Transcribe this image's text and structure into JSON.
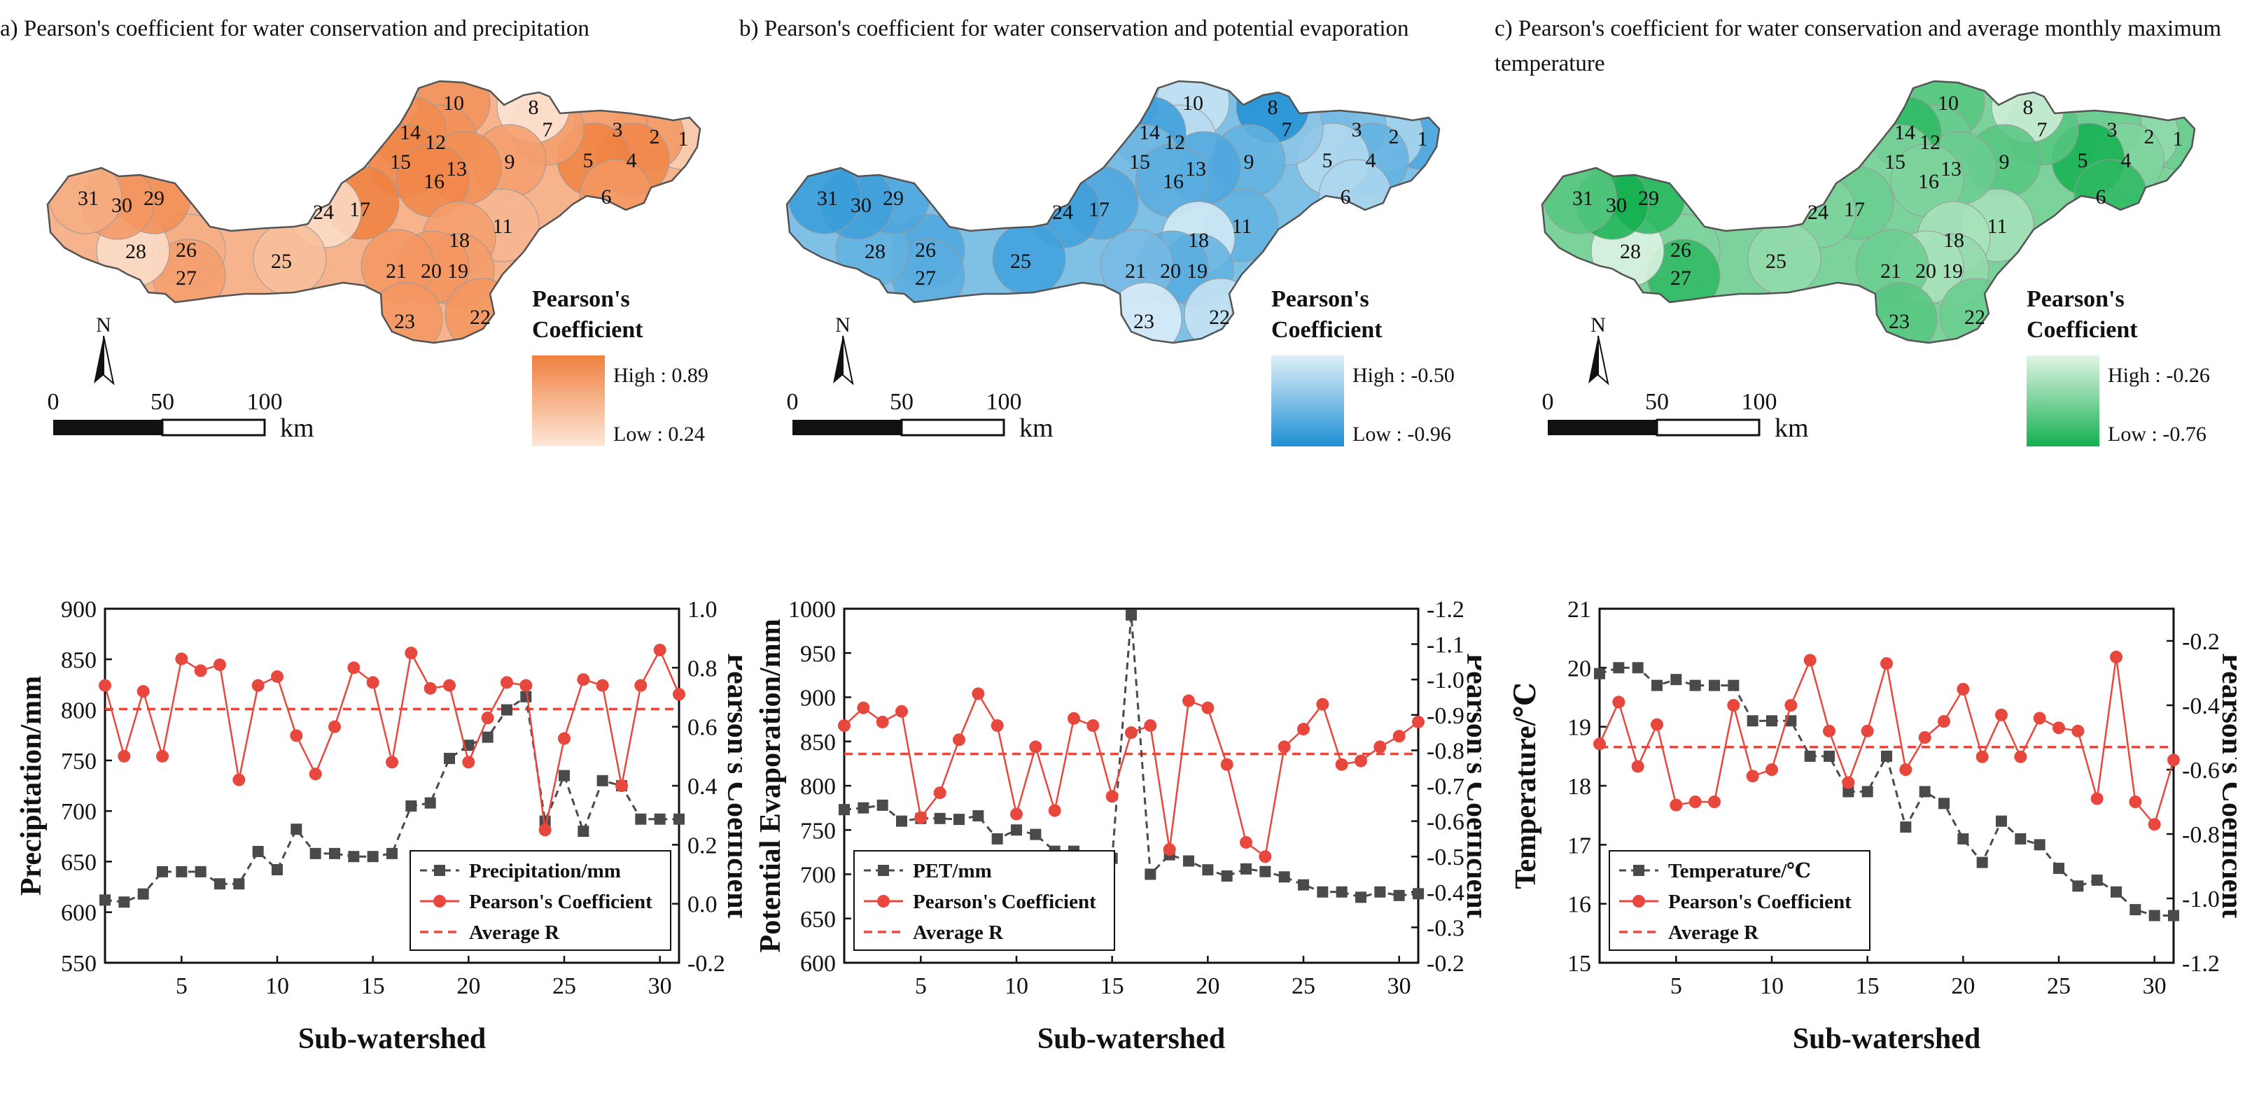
{
  "panels": [
    {
      "id": "a",
      "title": "a) Pearson's coefficient for water conservation and precipitation",
      "map": {
        "legend_title": "Pearson's Coefficient",
        "high_label": "High : 0.89",
        "low_label": "Low : 0.24",
        "color_high": "#f08040",
        "color_low": "#fde8d8",
        "north": "N",
        "scale_ticks": [
          "0",
          "50",
          "100"
        ],
        "scale_unit": "km",
        "subwatershed_labels": [
          "1",
          "2",
          "3",
          "4",
          "5",
          "6",
          "7",
          "8",
          "9",
          "10",
          "11",
          "12",
          "13",
          "14",
          "15",
          "16",
          "17",
          "18",
          "19",
          "20",
          "21",
          "22",
          "23",
          "24",
          "25",
          "26",
          "27",
          "28",
          "29",
          "30",
          "31"
        ],
        "values": [
          0.4,
          0.75,
          0.7,
          0.85,
          0.88,
          0.75,
          0.7,
          0.24,
          0.7,
          0.78,
          0.55,
          0.78,
          0.8,
          0.82,
          0.85,
          0.85,
          0.89,
          0.7,
          0.72,
          0.75,
          0.75,
          0.76,
          0.75,
          0.3,
          0.5,
          0.6,
          0.7,
          0.3,
          0.8,
          0.75,
          0.6
        ]
      }
    },
    {
      "id": "b",
      "title": "b) Pearson's coefficient for water conservation and potential evaporation",
      "map": {
        "legend_title": "Pearson's Coefficient",
        "high_label": "High : -0.50",
        "low_label": "Low : -0.96",
        "color_high": "#dff0f8",
        "color_low": "#1f8fd4",
        "north": "N",
        "scale_ticks": [
          "0",
          "50",
          "100"
        ],
        "scale_unit": "km",
        "subwatershed_labels": [
          "1",
          "2",
          "3",
          "4",
          "5",
          "6",
          "7",
          "8",
          "9",
          "10",
          "11",
          "12",
          "13",
          "14",
          "15",
          "16",
          "17",
          "18",
          "19",
          "20",
          "21",
          "22",
          "23",
          "24",
          "25",
          "26",
          "27",
          "28",
          "29",
          "30",
          "31"
        ],
        "values": [
          -0.85,
          -0.62,
          -0.75,
          -0.8,
          -0.6,
          -0.62,
          -0.7,
          -0.96,
          -0.8,
          -0.55,
          -0.8,
          -0.6,
          -0.85,
          -0.9,
          -0.75,
          -0.82,
          -0.85,
          -0.52,
          -0.8,
          -0.82,
          -0.75,
          -0.55,
          -0.5,
          -0.88,
          -0.88,
          -0.85,
          -0.82,
          -0.8,
          -0.85,
          -0.88,
          -0.9
        ]
      }
    },
    {
      "id": "c",
      "title": "c) Pearson's coefficient for water conservation and average monthly maximum temperature",
      "map": {
        "legend_title": "Pearson's Coefficient",
        "high_label": "High : -0.26",
        "low_label": "Low : -0.76",
        "color_high": "#e2f5e6",
        "color_low": "#14b050",
        "north": "N",
        "scale_ticks": [
          "0",
          "50",
          "100"
        ],
        "scale_unit": "km",
        "subwatershed_labels": [
          "1",
          "2",
          "3",
          "4",
          "5",
          "6",
          "7",
          "8",
          "9",
          "10",
          "11",
          "12",
          "13",
          "14",
          "15",
          "16",
          "17",
          "18",
          "19",
          "20",
          "21",
          "22",
          "23",
          "24",
          "25",
          "26",
          "27",
          "28",
          "29",
          "30",
          "31"
        ],
        "values": [
          -0.55,
          -0.45,
          -0.55,
          -0.5,
          -0.76,
          -0.7,
          -0.6,
          -0.3,
          -0.6,
          -0.6,
          -0.4,
          -0.55,
          -0.55,
          -0.7,
          -0.5,
          -0.5,
          -0.55,
          -0.4,
          -0.45,
          -0.4,
          -0.55,
          -0.55,
          -0.6,
          -0.5,
          -0.45,
          -0.5,
          -0.7,
          -0.26,
          -0.72,
          -0.76,
          -0.6
        ]
      }
    }
  ],
  "chart_data": [
    {
      "type": "line",
      "xlabel": "Sub-watershed",
      "ylabel": "Precipitation/mm",
      "y2label": "Pearson's Coefficient",
      "xlim": [
        1,
        31
      ],
      "xticks": [
        5,
        10,
        15,
        20,
        25,
        30
      ],
      "ylim": [
        550,
        900
      ],
      "yticks": [
        550,
        600,
        650,
        700,
        750,
        800,
        850,
        900
      ],
      "y2lim": [
        -0.2,
        1.0
      ],
      "y2ticks": [
        -0.2,
        0.0,
        0.2,
        0.4,
        0.6,
        0.8,
        1.0
      ],
      "y2_reversed": false,
      "y2_decimals": 1,
      "y_tick_labels": [
        "550",
        "600",
        "650",
        "700",
        "750",
        "800",
        "850",
        "900"
      ],
      "y2_tick_labels": [
        "-0.2",
        "0.0",
        "0.2",
        "0.4",
        "0.6",
        "0.8",
        "1.0"
      ],
      "x_tick_labels": [
        "5",
        "10",
        "15",
        "20",
        "25",
        "30"
      ],
      "legend_position": "bottom-right",
      "x": [
        1,
        2,
        3,
        4,
        5,
        6,
        7,
        8,
        9,
        10,
        11,
        12,
        13,
        14,
        15,
        16,
        17,
        18,
        19,
        20,
        21,
        22,
        23,
        24,
        25,
        26,
        27,
        28,
        29,
        30,
        31
      ],
      "series": [
        {
          "name": "Precipitation/mm",
          "axis": "left",
          "style": "dashed",
          "color": "#4a4a4a",
          "marker": "square",
          "values": [
            612,
            610,
            618,
            640,
            640,
            640,
            628,
            628,
            660,
            642,
            682,
            658,
            658,
            655,
            655,
            658,
            705,
            708,
            752,
            765,
            773,
            800,
            813,
            690,
            735,
            680,
            730,
            725,
            692,
            692,
            692
          ]
        },
        {
          "name": "Pearson's Coefficient",
          "axis": "right",
          "style": "solid",
          "color": "#e8473e",
          "marker": "circle",
          "values": [
            0.74,
            0.5,
            0.72,
            0.5,
            0.83,
            0.79,
            0.81,
            0.42,
            0.74,
            0.77,
            0.57,
            0.44,
            0.6,
            0.8,
            0.75,
            0.48,
            0.85,
            0.73,
            0.74,
            0.48,
            0.63,
            0.75,
            0.74,
            0.25,
            0.56,
            0.76,
            0.74,
            0.4,
            0.74,
            0.86,
            0.71
          ]
        },
        {
          "name": "Average R",
          "axis": "right",
          "style": "dashed",
          "color": "#e8473e",
          "marker": "none",
          "constant": 0.66
        }
      ]
    },
    {
      "type": "line",
      "xlabel": "Sub-watershed",
      "ylabel": "Potential Evaporation/mm",
      "y2label": "Pearson's Coefficient",
      "xlim": [
        1,
        31
      ],
      "xticks": [
        5,
        10,
        15,
        20,
        25,
        30
      ],
      "ylim": [
        600,
        1000
      ],
      "yticks": [
        600,
        650,
        700,
        750,
        800,
        850,
        900,
        950,
        1000
      ],
      "y2lim": [
        -0.2,
        -1.2
      ],
      "y2ticks": [
        -0.2,
        -0.3,
        -0.4,
        -0.5,
        -0.6,
        -0.7,
        -0.8,
        -0.9,
        -1.0,
        -1.1,
        -1.2
      ],
      "y2_reversed": true,
      "y2_decimals": 1,
      "y_tick_labels": [
        "600",
        "650",
        "700",
        "750",
        "800",
        "850",
        "900",
        "950",
        "1000"
      ],
      "y2_tick_labels": [
        "-0.2",
        "-0.3",
        "-0.4",
        "-0.5",
        "-0.6",
        "-0.7",
        "-0.8",
        "-0.9",
        "-1.0",
        "-1.1",
        "-1.2"
      ],
      "x_tick_labels": [
        "5",
        "10",
        "15",
        "20",
        "25",
        "30"
      ],
      "legend_position": "bottom-left",
      "x": [
        1,
        2,
        3,
        4,
        5,
        6,
        7,
        8,
        9,
        10,
        11,
        12,
        13,
        14,
        15,
        16,
        17,
        18,
        19,
        20,
        21,
        22,
        23,
        24,
        25,
        26,
        27,
        28,
        29,
        30,
        31
      ],
      "series": [
        {
          "name": "PET/mm",
          "axis": "left",
          "style": "dashed",
          "color": "#4a4a4a",
          "marker": "square",
          "values": [
            773,
            775,
            778,
            760,
            763,
            763,
            762,
            766,
            740,
            750,
            745,
            726,
            726,
            712,
            718,
            993,
            700,
            722,
            715,
            705,
            698,
            706,
            703,
            697,
            688,
            680,
            680,
            674,
            680,
            676,
            678
          ]
        },
        {
          "name": "Pearson's Coefficient",
          "axis": "right",
          "style": "solid",
          "color": "#e8473e",
          "marker": "circle",
          "values": [
            -0.87,
            -0.92,
            -0.88,
            -0.91,
            -0.61,
            -0.68,
            -0.83,
            -0.96,
            -0.87,
            -0.62,
            -0.81,
            -0.63,
            -0.89,
            -0.87,
            -0.67,
            -0.85,
            -0.87,
            -0.52,
            -0.94,
            -0.92,
            -0.76,
            -0.54,
            -0.5,
            -0.81,
            -0.86,
            -0.93,
            -0.76,
            -0.77,
            -0.81,
            -0.84,
            -0.88
          ]
        },
        {
          "name": "Average R",
          "axis": "right",
          "style": "dashed",
          "color": "#e8473e",
          "marker": "none",
          "constant": -0.79
        }
      ]
    },
    {
      "type": "line",
      "xlabel": "Sub-watershed",
      "ylabel": "Temperature/℃",
      "y2label": "Pearson's Coefficient",
      "xlim": [
        1,
        31
      ],
      "xticks": [
        5,
        10,
        15,
        20,
        25,
        30
      ],
      "ylim": [
        15,
        21
      ],
      "yticks": [
        15,
        16,
        17,
        18,
        19,
        20,
        21
      ],
      "y2lim": [
        -1.2,
        -0.1
      ],
      "y2ticks": [
        -1.2,
        -1.0,
        -0.8,
        -0.6,
        -0.4,
        -0.2
      ],
      "y2_reversed": false,
      "y2_decimals": 1,
      "y_tick_labels": [
        "15",
        "16",
        "17",
        "18",
        "19",
        "20",
        "21"
      ],
      "y2_tick_labels": [
        "-1.2",
        "-1.0",
        "-0.8",
        "-0.6",
        "-0.4",
        "-0.2"
      ],
      "x_tick_labels": [
        "5",
        "10",
        "15",
        "20",
        "25",
        "30"
      ],
      "legend_position": "bottom-left",
      "x": [
        1,
        2,
        3,
        4,
        5,
        6,
        7,
        8,
        9,
        10,
        11,
        12,
        13,
        14,
        15,
        16,
        17,
        18,
        19,
        20,
        21,
        22,
        23,
        24,
        25,
        26,
        27,
        28,
        29,
        30,
        31
      ],
      "series": [
        {
          "name": "Temperature/℃",
          "axis": "left",
          "style": "dashed",
          "color": "#4a4a4a",
          "marker": "square",
          "values": [
            19.9,
            20.0,
            20.0,
            19.7,
            19.8,
            19.7,
            19.7,
            19.7,
            19.1,
            19.1,
            19.1,
            18.5,
            18.5,
            17.9,
            17.9,
            18.5,
            17.3,
            17.9,
            17.7,
            17.1,
            16.7,
            17.4,
            17.1,
            17.0,
            16.6,
            16.3,
            16.4,
            16.2,
            15.9,
            15.8,
            15.8
          ]
        },
        {
          "name": "Pearson's Coefficient",
          "axis": "right",
          "style": "solid",
          "color": "#e8473e",
          "marker": "circle",
          "values": [
            -0.52,
            -0.39,
            -0.59,
            -0.46,
            -0.71,
            -0.7,
            -0.7,
            -0.4,
            -0.62,
            -0.6,
            -0.4,
            -0.26,
            -0.48,
            -0.64,
            -0.48,
            -0.27,
            -0.6,
            -0.5,
            -0.45,
            -0.35,
            -0.56,
            -0.43,
            -0.56,
            -0.44,
            -0.47,
            -0.48,
            -0.69,
            -0.25,
            -0.7,
            -0.77,
            -0.57
          ]
        },
        {
          "name": "Average R",
          "axis": "right",
          "style": "dashed",
          "color": "#e8473e",
          "marker": "none",
          "constant": -0.53
        }
      ]
    }
  ]
}
